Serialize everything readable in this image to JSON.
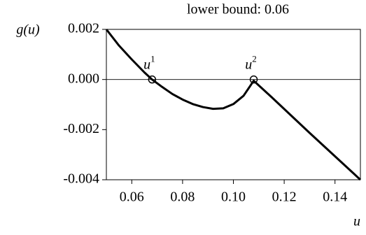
{
  "chart_data": {
    "type": "line",
    "title": "lower bound: 0.06",
    "xlabel": "u",
    "ylabel": "g(u)",
    "series": [
      {
        "name": "g",
        "color": "#000000",
        "x": [
          0.05,
          0.055,
          0.06,
          0.065,
          0.068,
          0.072,
          0.076,
          0.08,
          0.084,
          0.088,
          0.092,
          0.096,
          0.1,
          0.104,
          0.108,
          0.115,
          0.13,
          0.15
        ],
        "values": [
          0.002,
          0.00135,
          0.0008,
          0.00028,
          0,
          -0.0003,
          -0.00058,
          -0.0008,
          -0.00098,
          -0.0011,
          -0.00117,
          -0.00115,
          -0.00098,
          -0.00065,
          -5e-05,
          -0.0007,
          -0.00213,
          -0.004
        ]
      }
    ],
    "points": [
      {
        "x": 0.068,
        "y": 0,
        "label": "u",
        "sup": "1"
      },
      {
        "x": 0.108,
        "y": 0,
        "label": "u",
        "sup": "2"
      }
    ],
    "xlim": [
      0.05,
      0.15
    ],
    "ylim": [
      -0.004,
      0.002
    ],
    "xticks": [
      0.06,
      0.08,
      {
        "value": 0.1,
        "label": "0.10"
      },
      0.12,
      0.14
    ],
    "yticks": [
      0.002,
      {
        "value": 0,
        "label": "0.000"
      },
      -0.002,
      -0.004
    ],
    "zero_line": true
  }
}
